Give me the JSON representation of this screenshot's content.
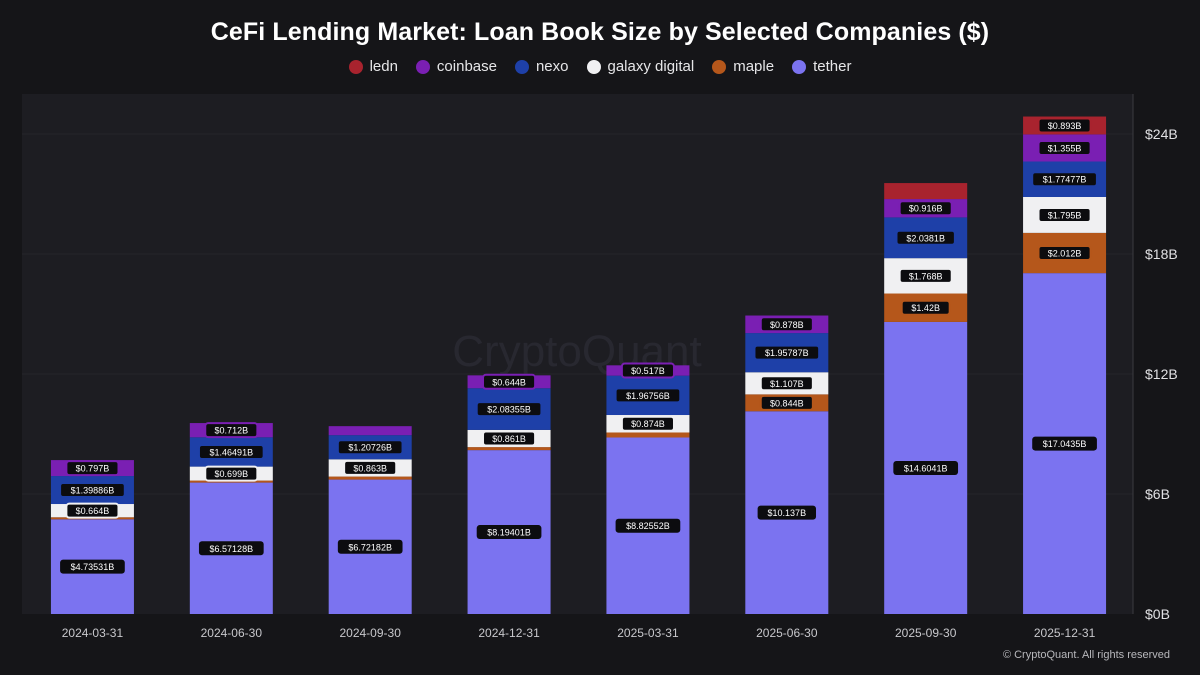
{
  "chart_data": {
    "type": "bar",
    "stacked": true,
    "title": "CeFi Lending Market: Loan Book Size by Selected Companies ($)",
    "categories": [
      "2024-03-31",
      "2024-06-30",
      "2024-09-30",
      "2024-12-31",
      "2025-03-31",
      "2025-06-30",
      "2025-09-30",
      "2025-12-31"
    ],
    "y_ticks": [
      "$0B",
      "$6B",
      "$12B",
      "$18B",
      "$24B"
    ],
    "ylim": [
      0,
      26
    ],
    "ytick_values": [
      0,
      6,
      12,
      18,
      24
    ],
    "legend_position": "top-center",
    "series": [
      {
        "name": "tether",
        "color": "#7b73f0",
        "values": [
          4.73531,
          6.57128,
          6.72182,
          8.19401,
          8.82552,
          10.137,
          14.6041,
          17.0435
        ],
        "labels": [
          "$4.73531B",
          "$6.57128B",
          "$6.72182B",
          "$8.19401B",
          "$8.82552B",
          "$10.137B",
          "$14.6041B",
          "$17.0435B"
        ]
      },
      {
        "name": "maple",
        "color": "#b5571b",
        "values": [
          0.1,
          0.1,
          0.15,
          0.15,
          0.25,
          0.844,
          1.42,
          2.012
        ],
        "labels": [
          "",
          "",
          "",
          "",
          "",
          "$0.844B",
          "$1.42B",
          "$2.012B"
        ]
      },
      {
        "name": "galaxy digital",
        "color": "#f0f0f2",
        "values": [
          0.664,
          0.699,
          0.863,
          0.861,
          0.874,
          1.107,
          1.768,
          1.795
        ],
        "labels": [
          "$0.664B",
          "$0.699B",
          "$0.863B",
          "$0.861B",
          "$0.874B",
          "$1.107B",
          "$1.768B",
          "$1.795B"
        ]
      },
      {
        "name": "nexo",
        "color": "#1e40a8",
        "values": [
          1.39886,
          1.46491,
          1.20726,
          2.08355,
          1.96756,
          1.95787,
          2.0381,
          1.77477
        ],
        "labels": [
          "$1.39886B",
          "$1.46491B",
          "$1.20726B",
          "$2.08355B",
          "$1.96756B",
          "$1.95787B",
          "$2.0381B",
          "$1.77477B"
        ]
      },
      {
        "name": "coinbase",
        "color": "#7a1fb3",
        "values": [
          0.797,
          0.712,
          0.45,
          0.644,
          0.517,
          0.878,
          0.916,
          1.355
        ],
        "labels": [
          "$0.797B",
          "$0.712B",
          "",
          "$0.644B",
          "$0.517B",
          "$0.878B",
          "$0.916B",
          "$1.355B"
        ]
      },
      {
        "name": "ledn",
        "color": "#a8232e",
        "values": [
          0,
          0,
          0,
          0,
          0,
          0,
          0.8,
          0.893
        ],
        "labels": [
          "",
          "",
          "",
          "",
          "",
          "",
          "",
          "$0.893B"
        ]
      }
    ]
  },
  "watermark": "CryptoQuant",
  "copyright": "© CryptoQuant. All rights reserved"
}
